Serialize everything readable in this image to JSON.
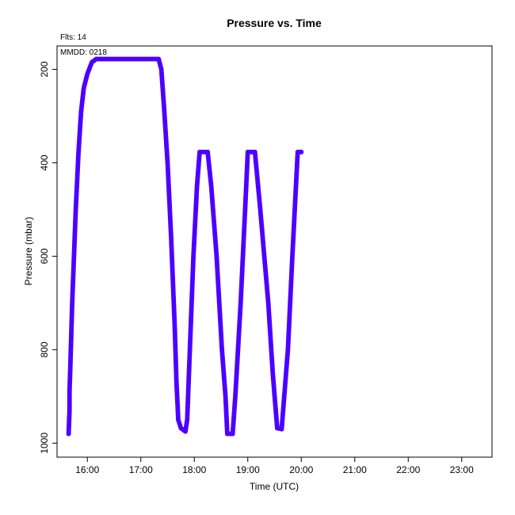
{
  "chart_data": {
    "type": "scatter",
    "title": "Pressure  vs. Time",
    "xlabel": "Time (UTC)",
    "ylabel": "Pressure (mbar)",
    "annotations": [
      "Flts: 14",
      "MMDD: 0218"
    ],
    "xlim": [
      "15:26",
      "23:34"
    ],
    "ylim": [
      1030,
      150
    ],
    "y_inverted": true,
    "x_ticks": [
      "16:00",
      "17:00",
      "18:00",
      "19:00",
      "20:00",
      "21:00",
      "22:00",
      "23:00"
    ],
    "y_ticks": [
      200,
      400,
      600,
      800,
      1000
    ],
    "grid": false,
    "marker_color": "#4c00ff",
    "series": [
      {
        "points": [
          [
            "15:39",
            980
          ],
          [
            "15:40",
            930
          ],
          [
            "15:40",
            890
          ],
          [
            "15:41",
            830
          ],
          [
            "15:43",
            700
          ],
          [
            "15:45",
            600
          ],
          [
            "15:47",
            500
          ],
          [
            "15:50",
            380
          ],
          [
            "15:53",
            290
          ],
          [
            "15:56",
            240
          ],
          [
            "16:00",
            210
          ],
          [
            "16:05",
            185
          ],
          [
            "16:10",
            178
          ],
          [
            "17:00",
            178
          ],
          [
            "17:20",
            178
          ],
          [
            "17:23",
            200
          ],
          [
            "17:26",
            280
          ],
          [
            "17:30",
            400
          ],
          [
            "17:34",
            560
          ],
          [
            "17:38",
            750
          ],
          [
            "17:40",
            870
          ],
          [
            "17:42",
            950
          ],
          [
            "17:45",
            968
          ],
          [
            "17:50",
            975
          ],
          [
            "17:52",
            950
          ],
          [
            "17:55",
            800
          ],
          [
            "17:59",
            600
          ],
          [
            "18:03",
            450
          ],
          [
            "18:06",
            377
          ],
          [
            "18:15",
            377
          ],
          [
            "18:19",
            450
          ],
          [
            "18:25",
            600
          ],
          [
            "18:31",
            800
          ],
          [
            "18:35",
            900
          ],
          [
            "18:37",
            980
          ],
          [
            "18:43",
            980
          ],
          [
            "18:46",
            900
          ],
          [
            "18:52",
            700
          ],
          [
            "18:57",
            500
          ],
          [
            "19:00",
            377
          ],
          [
            "19:08",
            377
          ],
          [
            "19:14",
            500
          ],
          [
            "19:23",
            700
          ],
          [
            "19:28",
            850
          ],
          [
            "19:33",
            968
          ],
          [
            "19:38",
            970
          ],
          [
            "19:45",
            800
          ],
          [
            "19:50",
            600
          ],
          [
            "19:56",
            377
          ],
          [
            "20:00",
            377
          ]
        ]
      }
    ]
  }
}
